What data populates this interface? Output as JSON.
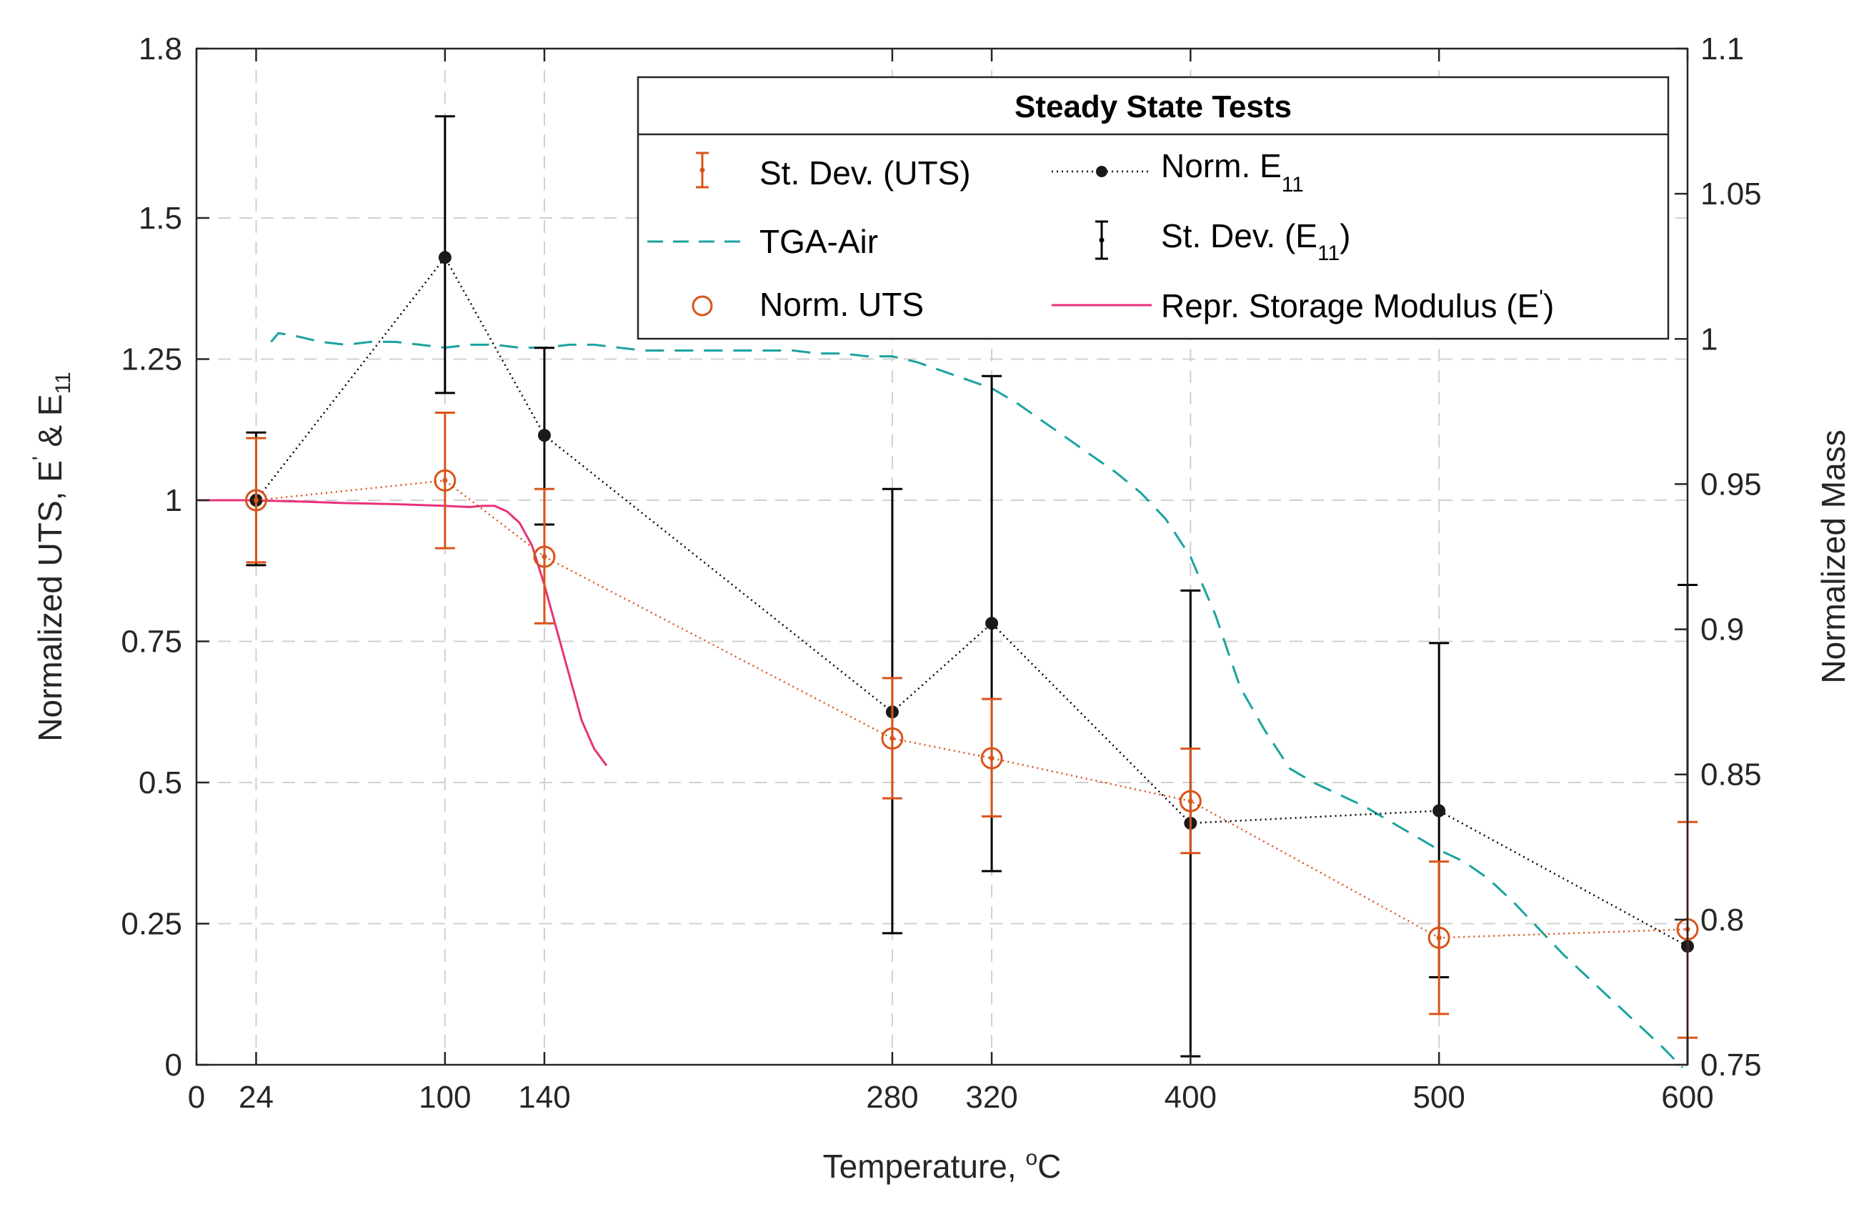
{
  "chart_data": {
    "type": "line",
    "xlabel": "Temperature, ",
    "xlabel_sup": "o",
    "xlabel_tail": "C",
    "ylabel_left_parts": [
      "Normalized UTS, E",
      "'",
      " & E",
      "11"
    ],
    "ylabel_right": "Normalized Mass",
    "xlim": [
      0,
      600
    ],
    "ylim_left": [
      0,
      1.8
    ],
    "ylim_right": [
      0.75,
      1.1
    ],
    "x_ticks": [
      0,
      24,
      100,
      140,
      280,
      320,
      400,
      500,
      600
    ],
    "x_tick_labels": [
      "0",
      "24",
      "100",
      "140",
      "280",
      "320",
      "400",
      "500",
      "600"
    ],
    "y_left_ticks": [
      0,
      0.25,
      0.5,
      0.75,
      1,
      1.25,
      1.5,
      1.8
    ],
    "y_left_tick_labels": [
      "0",
      "0.25",
      "0.5",
      "0.75",
      "1",
      "1.25",
      "1.5",
      "1.8"
    ],
    "y_right_ticks": [
      0.75,
      0.8,
      0.85,
      0.9,
      0.95,
      1,
      1.05,
      1.1
    ],
    "y_right_tick_labels": [
      "0.75",
      "0.8",
      "0.85",
      "0.9",
      "0.95",
      "1",
      "1.05",
      "1.1"
    ],
    "grid_x": [
      24,
      100,
      140,
      280,
      320,
      400,
      500,
      600
    ],
    "grid_y": [
      0.25,
      0.5,
      0.75,
      1,
      1.25,
      1.5
    ],
    "legend": {
      "title": "Steady State Tests",
      "position": "top-right",
      "entries": {
        "std_uts": "St. Dev. (UTS)",
        "norm_e11": "Norm. E",
        "norm_e11_sub": "11",
        "tga": "TGA-Air",
        "std_e11": "St. Dev. (E",
        "std_e11_sub": "11",
        "std_e11_tail": ")",
        "norm_uts": "Norm. UTS",
        "storage": "Repr. Storage Modulus (E",
        "storage_sup": "'",
        "storage_tail": ")"
      }
    },
    "colors": {
      "uts": "#D95319",
      "e11": "#000000",
      "tga": "#1AA3A0",
      "storage": "#E8317A",
      "grid": "#D0D0D0"
    },
    "series": [
      {
        "name": "Norm. UTS",
        "axis": "left",
        "style": "dotted-with-circles",
        "x": [
          24,
          100,
          140,
          280,
          320,
          400,
          500,
          600
        ],
        "y": [
          1.0,
          1.035,
          0.9,
          0.578,
          0.543,
          0.467,
          0.225,
          0.24
        ],
        "err_low": [
          0.89,
          0.915,
          0.782,
          0.472,
          0.44,
          0.375,
          0.09,
          0.048
        ],
        "err_high": [
          1.11,
          1.155,
          1.02,
          0.685,
          0.648,
          0.56,
          0.36,
          0.43
        ]
      },
      {
        "name": "Norm. E11",
        "axis": "left",
        "style": "dotted-with-dots",
        "x": [
          24,
          100,
          140,
          280,
          320,
          400,
          500,
          600
        ],
        "y": [
          1.0,
          1.43,
          1.115,
          0.625,
          0.782,
          0.428,
          0.45,
          0.21
        ],
        "err_low": [
          0.885,
          1.19,
          0.957,
          0.233,
          0.343,
          0.015,
          0.155,
          -0.05
        ],
        "err_high": [
          1.12,
          1.68,
          1.27,
          1.02,
          1.22,
          0.84,
          0.747,
          0.85
        ]
      },
      {
        "name": "TGA-Air",
        "axis": "right",
        "style": "dashed",
        "x": [
          30,
          33,
          40,
          50,
          60,
          70,
          80,
          90,
          100,
          110,
          120,
          130,
          140,
          150,
          160,
          170,
          180,
          190,
          200,
          210,
          220,
          230,
          240,
          250,
          260,
          270,
          280,
          290,
          300,
          310,
          320,
          330,
          340,
          350,
          360,
          370,
          380,
          390,
          400,
          410,
          420,
          430,
          440,
          450,
          460,
          470,
          480,
          490,
          500,
          510,
          520,
          530,
          540,
          550,
          560,
          570,
          580,
          590,
          598
        ],
        "y": [
          0.999,
          1.002,
          1.001,
          0.999,
          0.998,
          0.999,
          0.999,
          0.998,
          0.997,
          0.998,
          0.998,
          0.997,
          0.997,
          0.998,
          0.998,
          0.997,
          0.996,
          0.996,
          0.996,
          0.996,
          0.996,
          0.996,
          0.996,
          0.995,
          0.995,
          0.994,
          0.994,
          0.992,
          0.989,
          0.986,
          0.983,
          0.978,
          0.972,
          0.966,
          0.96,
          0.954,
          0.947,
          0.938,
          0.925,
          0.905,
          0.88,
          0.865,
          0.852,
          0.847,
          0.843,
          0.839,
          0.834,
          0.829,
          0.824,
          0.82,
          0.814,
          0.806,
          0.797,
          0.788,
          0.78,
          0.772,
          0.764,
          0.756,
          0.749
        ]
      },
      {
        "name": "Repr. Storage Modulus (E')",
        "axis": "left",
        "style": "solid",
        "x": [
          0,
          20,
          40,
          60,
          80,
          100,
          110,
          115,
          120,
          125,
          130,
          135,
          140,
          145,
          150,
          155,
          160,
          165
        ],
        "y": [
          1.0,
          1.0,
          0.998,
          0.995,
          0.993,
          0.99,
          0.988,
          0.99,
          0.99,
          0.98,
          0.96,
          0.92,
          0.85,
          0.77,
          0.69,
          0.61,
          0.56,
          0.53
        ]
      }
    ]
  }
}
